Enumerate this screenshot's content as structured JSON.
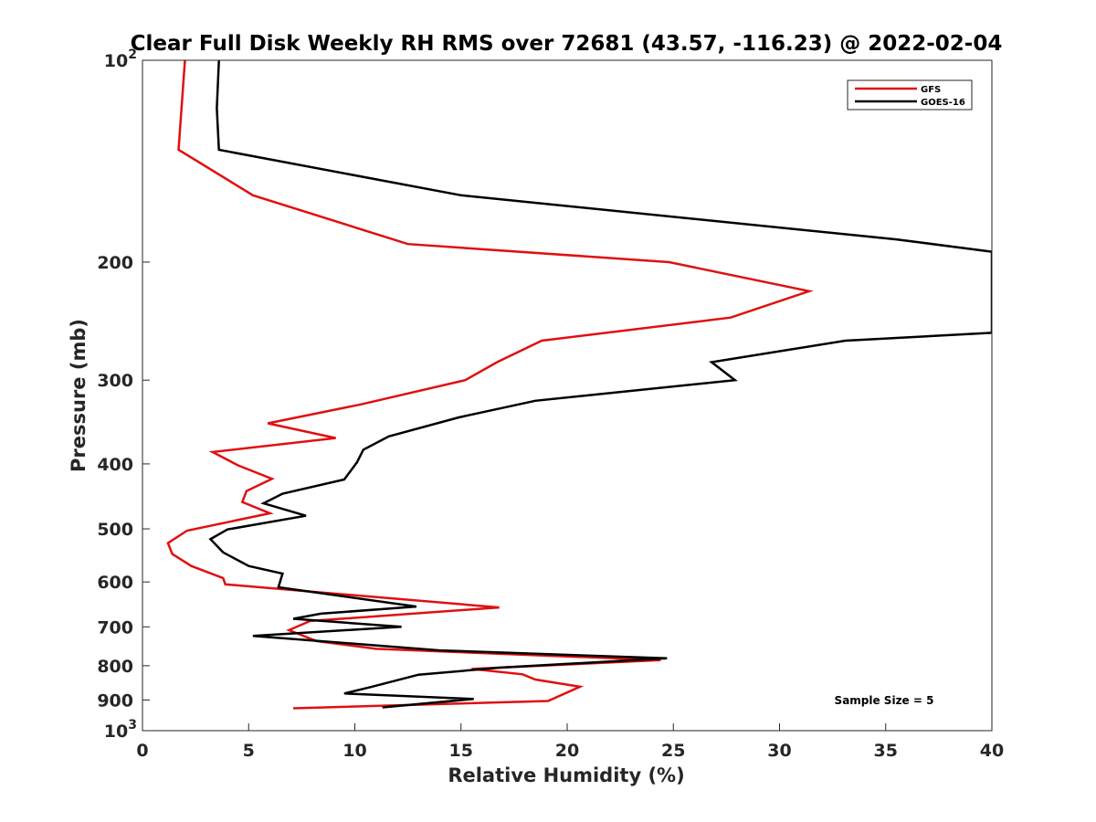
{
  "chart_data": {
    "type": "line",
    "title": "Clear Full Disk Weekly RH RMS over 72681 (43.57, -116.23) @ 2022-02-04",
    "xlabel": "Relative Humidity (%)",
    "ylabel": "Pressure (mb)",
    "xlim": [
      0,
      40
    ],
    "ylim": [
      100,
      1000
    ],
    "y_scale": "log-reversed",
    "x_ticks": [
      "0",
      "5",
      "10",
      "15",
      "20",
      "25",
      "30",
      "35",
      "40"
    ],
    "y_tick_labels": [
      {
        "p": 100,
        "base": "10",
        "exp": "2"
      },
      {
        "p": 200,
        "base": "200",
        "exp": ""
      },
      {
        "p": 300,
        "base": "300",
        "exp": ""
      },
      {
        "p": 400,
        "base": "400",
        "exp": ""
      },
      {
        "p": 500,
        "base": "500",
        "exp": ""
      },
      {
        "p": 600,
        "base": "600",
        "exp": ""
      },
      {
        "p": 700,
        "base": "700",
        "exp": ""
      },
      {
        "p": 800,
        "base": "800",
        "exp": ""
      },
      {
        "p": 900,
        "base": "900",
        "exp": ""
      },
      {
        "p": 1000,
        "base": "10",
        "exp": "3"
      }
    ],
    "legend_position": "top-right",
    "annotation": "Sample Size = 5",
    "series": [
      {
        "name": "GFS",
        "color": "#e01010",
        "points": [
          [
            2.0,
            100
          ],
          [
            1.7,
            136
          ],
          [
            5.2,
            159
          ],
          [
            12.5,
            188
          ],
          [
            24.8,
            200
          ],
          [
            31.4,
            221
          ],
          [
            27.7,
            242
          ],
          [
            18.8,
            262
          ],
          [
            16.7,
            282
          ],
          [
            15.2,
            300
          ],
          [
            10.3,
            326
          ],
          [
            5.9,
            348
          ],
          [
            9.1,
            366
          ],
          [
            3.3,
            384
          ],
          [
            4.5,
            402
          ],
          [
            6.1,
            421
          ],
          [
            4.9,
            439
          ],
          [
            4.7,
            456
          ],
          [
            6.0,
            474
          ],
          [
            2.1,
            503
          ],
          [
            1.2,
            525
          ],
          [
            1.4,
            545
          ],
          [
            2.3,
            568
          ],
          [
            3.8,
            592
          ],
          [
            3.9,
            605
          ],
          [
            16.8,
            655
          ],
          [
            7.9,
            686
          ],
          [
            6.9,
            708
          ],
          [
            8.2,
            735
          ],
          [
            11.0,
            755
          ],
          [
            24.4,
            785
          ],
          [
            15.5,
            809
          ],
          [
            17.9,
            824
          ],
          [
            18.5,
            839
          ],
          [
            20.6,
            860
          ],
          [
            19.1,
            903
          ],
          [
            7.1,
            926
          ]
        ]
      },
      {
        "name": "GOES-16",
        "color": "#000000",
        "points": [
          [
            3.6,
            100
          ],
          [
            3.5,
            118
          ],
          [
            3.6,
            136
          ],
          [
            15.0,
            159
          ],
          [
            35.5,
            185
          ],
          [
            40.0,
            193
          ],
          [
            40.0,
            255
          ],
          [
            33.1,
            262
          ],
          [
            26.8,
            282
          ],
          [
            27.9,
            300
          ],
          [
            18.5,
            322
          ],
          [
            14.9,
            341
          ],
          [
            11.6,
            364
          ],
          [
            10.4,
            381
          ],
          [
            10.1,
            398
          ],
          [
            9.5,
            422
          ],
          [
            6.6,
            443
          ],
          [
            5.7,
            458
          ],
          [
            7.7,
            478
          ],
          [
            4.0,
            501
          ],
          [
            3.2,
            518
          ],
          [
            3.8,
            542
          ],
          [
            5.0,
            568
          ],
          [
            6.6,
            583
          ],
          [
            6.4,
            611
          ],
          [
            12.9,
            653
          ],
          [
            8.4,
            669
          ],
          [
            7.1,
            681
          ],
          [
            12.2,
            700
          ],
          [
            5.2,
            722
          ],
          [
            14.0,
            759
          ],
          [
            24.7,
            780
          ],
          [
            16.9,
            805
          ],
          [
            13.0,
            825
          ],
          [
            10.8,
            860
          ],
          [
            9.5,
            880
          ],
          [
            15.6,
            897
          ],
          [
            11.3,
            923
          ]
        ]
      }
    ]
  }
}
